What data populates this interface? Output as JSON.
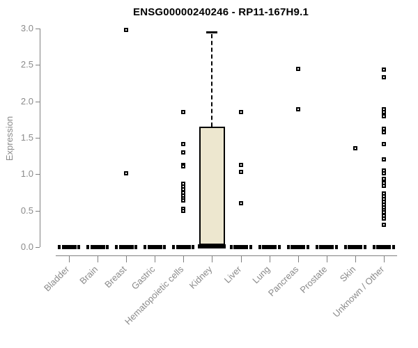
{
  "chart_data": {
    "type": "boxplot",
    "title": "ENSG00000240246 - RP11-167H9.1",
    "ylabel": "Expression",
    "xlabel": "",
    "ylim": [
      0.0,
      3.0
    ],
    "yticks": [
      0.0,
      0.5,
      1.0,
      1.5,
      2.0,
      2.5,
      3.0
    ],
    "grid": false,
    "legend": false,
    "categories": [
      "Bladder",
      "Brain",
      "Breast",
      "Gastric",
      "Hematopoietic cells",
      "Kidney",
      "Liver",
      "Lung",
      "Pancreas",
      "Prostate",
      "Skin",
      "Unknown / Other"
    ],
    "series": [
      {
        "category": "Bladder",
        "low": 0,
        "q1": 0,
        "median": 0,
        "q3": 0,
        "high": 0,
        "outliers": []
      },
      {
        "category": "Brain",
        "low": 0,
        "q1": 0,
        "median": 0,
        "q3": 0,
        "high": 0,
        "outliers": []
      },
      {
        "category": "Breast",
        "low": 0,
        "q1": 0,
        "median": 0,
        "q3": 0,
        "high": 0,
        "outliers": [
          2.98,
          1.01
        ]
      },
      {
        "category": "Gastric",
        "low": 0,
        "q1": 0,
        "median": 0,
        "q3": 0,
        "high": 0,
        "outliers": []
      },
      {
        "category": "Hematopoietic cells",
        "low": 0,
        "q1": 0,
        "median": 0,
        "q3": 0,
        "high": 0,
        "outliers": [
          1.85,
          1.41,
          1.3,
          1.13,
          1.11,
          0.87,
          0.83,
          0.79,
          0.75,
          0.71,
          0.67,
          0.64,
          0.53,
          0.5
        ]
      },
      {
        "category": "Kidney",
        "low": 0,
        "q1": 0.03,
        "median": 0.01,
        "q3": 1.65,
        "high": 2.95,
        "outliers": []
      },
      {
        "category": "Liver",
        "low": 0,
        "q1": 0,
        "median": 0,
        "q3": 0,
        "high": 0,
        "outliers": [
          1.85,
          1.13,
          1.03,
          0.6
        ]
      },
      {
        "category": "Lung",
        "low": 0,
        "q1": 0,
        "median": 0,
        "q3": 0,
        "high": 0,
        "outliers": []
      },
      {
        "category": "Pancreas",
        "low": 0,
        "q1": 0,
        "median": 0,
        "q3": 0,
        "high": 0,
        "outliers": [
          2.45,
          1.89
        ]
      },
      {
        "category": "Prostate",
        "low": 0,
        "q1": 0,
        "median": 0,
        "q3": 0,
        "high": 0,
        "outliers": []
      },
      {
        "category": "Skin",
        "low": 0,
        "q1": 0,
        "median": 0,
        "q3": 0,
        "high": 0,
        "outliers": [
          1.36
        ]
      },
      {
        "category": "Unknown / Other",
        "low": 0,
        "q1": 0,
        "median": 0,
        "q3": 0,
        "high": 0,
        "outliers": [
          2.44,
          2.33,
          1.89,
          1.85,
          1.8,
          1.62,
          1.58,
          1.41,
          1.2,
          1.05,
          1.01,
          0.94,
          0.88,
          0.84,
          0.74,
          0.7,
          0.66,
          0.62,
          0.58,
          0.54,
          0.51,
          0.48,
          0.43,
          0.39,
          0.31
        ]
      }
    ],
    "colors": {
      "box_fill": "#EDE7CF",
      "box_border": "#000000",
      "axis": "#7F7F7F",
      "tick_label": "#8A8A8A",
      "title": "#000000",
      "outlier_fill": "#FFFFFF",
      "outlier_border": "#000000"
    }
  }
}
